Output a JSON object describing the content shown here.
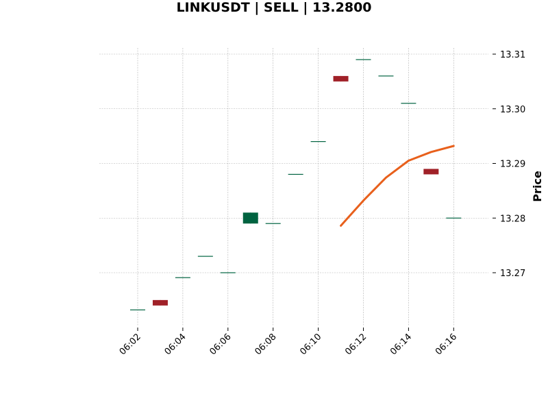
{
  "chart_data": {
    "type": "candlestick",
    "title": "LINKUSDT | SELL | 13.2800",
    "xlabel": "",
    "ylabel": "Price",
    "y_axis_side": "right",
    "ylim": [
      13.2615,
      13.3115
    ],
    "grid": true,
    "x_tick_labels": [
      "06:02",
      "06:04",
      "06:06",
      "06:08",
      "06:10",
      "06:12",
      "06:14",
      "06:16"
    ],
    "x_tick_times": [
      "06:02",
      "06:04",
      "06:06",
      "06:08",
      "06:10",
      "06:12",
      "06:14",
      "06:16"
    ],
    "y_ticks": [
      13.27,
      13.28,
      13.29,
      13.3,
      13.31
    ],
    "y_tick_labels": [
      "13.27",
      "13.28",
      "13.29",
      "13.30",
      "13.31"
    ],
    "colors": {
      "up": "#006340",
      "down": "#a02128",
      "line": "#e8601c"
    },
    "candles": [
      {
        "time": "06:02",
        "open": 13.2632,
        "high": 13.2632,
        "low": 13.2632,
        "close": 13.2632
      },
      {
        "time": "06:03",
        "open": 13.265,
        "high": 13.265,
        "low": 13.264,
        "close": 13.264
      },
      {
        "time": "06:04",
        "open": 13.2691,
        "high": 13.2691,
        "low": 13.2691,
        "close": 13.2691
      },
      {
        "time": "06:05",
        "open": 13.273,
        "high": 13.273,
        "low": 13.273,
        "close": 13.273
      },
      {
        "time": "06:06",
        "open": 13.27,
        "high": 13.27,
        "low": 13.27,
        "close": 13.27
      },
      {
        "time": "06:07",
        "open": 13.279,
        "high": 13.281,
        "low": 13.279,
        "close": 13.281
      },
      {
        "time": "06:08",
        "open": 13.279,
        "high": 13.279,
        "low": 13.279,
        "close": 13.279
      },
      {
        "time": "06:09",
        "open": 13.288,
        "high": 13.288,
        "low": 13.288,
        "close": 13.288
      },
      {
        "time": "06:10",
        "open": 13.294,
        "high": 13.294,
        "low": 13.294,
        "close": 13.294
      },
      {
        "time": "06:11",
        "open": 13.306,
        "high": 13.306,
        "low": 13.305,
        "close": 13.305
      },
      {
        "time": "06:12",
        "open": 13.309,
        "high": 13.309,
        "low": 13.309,
        "close": 13.309
      },
      {
        "time": "06:13",
        "open": 13.306,
        "high": 13.306,
        "low": 13.306,
        "close": 13.306
      },
      {
        "time": "06:14",
        "open": 13.301,
        "high": 13.301,
        "low": 13.301,
        "close": 13.301
      },
      {
        "time": "06:15",
        "open": 13.289,
        "high": 13.289,
        "low": 13.288,
        "close": 13.288
      },
      {
        "time": "06:16",
        "open": 13.28,
        "high": 13.28,
        "low": 13.28,
        "close": 13.28
      }
    ],
    "line_series": {
      "times": [
        "06:11",
        "06:12",
        "06:13",
        "06:14",
        "06:15",
        "06:16"
      ],
      "values": [
        13.2786,
        13.2832,
        13.2874,
        13.2905,
        13.2921,
        13.2932
      ]
    }
  }
}
